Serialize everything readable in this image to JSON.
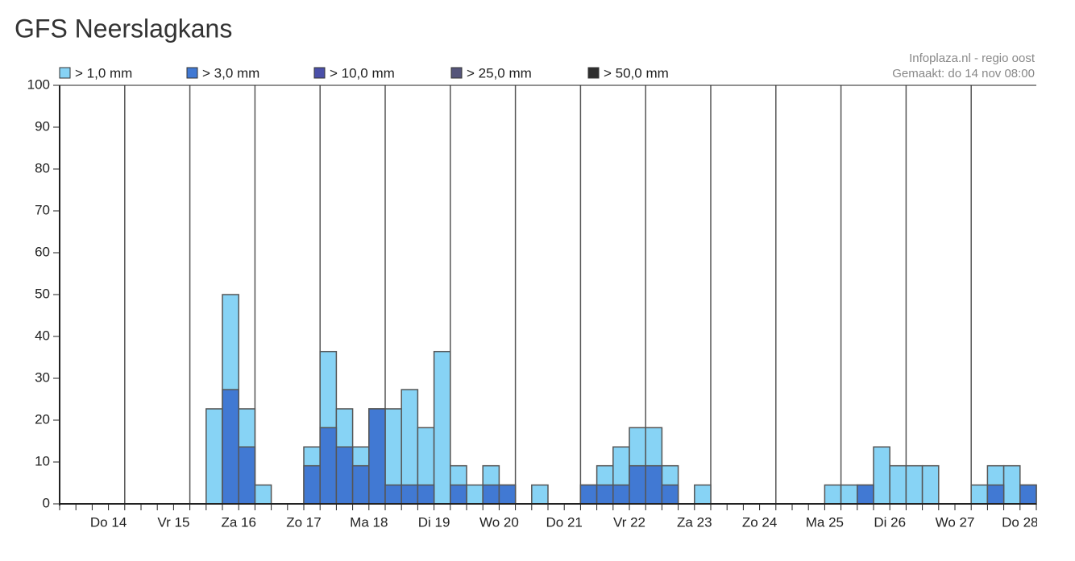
{
  "chart_data": {
    "type": "bar",
    "title": "GFS Neerslagkans",
    "annotations": [
      "Infoplaza.nl - regio oost",
      "Gemaakt: do 14 nov 08:00"
    ],
    "categories": [
      null,
      null,
      null,
      "Do 14",
      null,
      null,
      null,
      "Vr 15",
      null,
      null,
      null,
      "Za 16",
      null,
      null,
      null,
      "Zo 17",
      null,
      null,
      null,
      "Ma 18",
      null,
      null,
      null,
      "Di 19",
      null,
      null,
      null,
      "Wo 20",
      null,
      null,
      null,
      "Do 21",
      null,
      null,
      null,
      "Vr 22",
      null,
      null,
      null,
      "Za 23",
      null,
      null,
      null,
      "Zo 24",
      null,
      null,
      null,
      "Ma 25",
      null,
      null,
      null,
      "Di 26",
      null,
      null,
      null,
      "Wo 27",
      null,
      null,
      null,
      "Do 28"
    ],
    "series": [
      {
        "name": "> 1,0 mm",
        "color": "#87d3f5",
        "values": [
          0,
          0,
          0,
          0,
          0,
          0,
          0,
          0,
          0,
          22.7,
          50,
          22.7,
          4.5,
          0,
          0,
          13.6,
          36.4,
          22.7,
          13.6,
          22.7,
          22.7,
          27.3,
          18.2,
          36.4,
          9.1,
          4.5,
          9.1,
          4.5,
          0,
          4.5,
          0,
          0,
          4.5,
          9.1,
          13.6,
          18.2,
          18.2,
          9.1,
          0,
          4.5,
          0,
          0,
          0,
          0,
          0,
          0,
          0,
          4.5,
          4.5,
          4.5,
          13.6,
          9.1,
          9.1,
          9.1,
          0,
          0,
          4.5,
          9.1,
          9.1,
          4.5
        ]
      },
      {
        "name": "> 3,0 mm",
        "color": "#4179d3",
        "values": [
          0,
          0,
          0,
          0,
          0,
          0,
          0,
          0,
          0,
          0,
          27.3,
          13.6,
          0,
          0,
          0,
          9.1,
          18.2,
          13.6,
          9.1,
          22.7,
          4.5,
          4.5,
          4.5,
          0,
          4.5,
          0,
          4.5,
          4.5,
          0,
          0,
          0,
          0,
          4.5,
          4.5,
          4.5,
          9.1,
          9.1,
          4.5,
          0,
          0,
          0,
          0,
          0,
          0,
          0,
          0,
          0,
          0,
          0,
          4.5,
          0,
          0,
          0,
          0,
          0,
          0,
          0,
          4.5,
          0,
          4.5
        ]
      },
      {
        "name": "> 10,0 mm",
        "color": "#4a4fa8",
        "values": [
          0,
          0,
          0,
          0,
          0,
          0,
          0,
          0,
          0,
          0,
          0,
          0,
          0,
          0,
          0,
          0,
          0,
          0,
          0,
          0,
          0,
          0,
          0,
          0,
          0,
          0,
          0,
          0,
          0,
          0,
          0,
          0,
          0,
          0,
          0,
          0,
          0,
          0,
          0,
          0,
          0,
          0,
          0,
          0,
          0,
          0,
          0,
          0,
          0,
          0,
          0,
          0,
          0,
          0,
          0,
          0,
          0,
          0,
          0,
          0
        ]
      },
      {
        "name": "> 25,0 mm",
        "color": "#55557a",
        "values": [
          0,
          0,
          0,
          0,
          0,
          0,
          0,
          0,
          0,
          0,
          0,
          0,
          0,
          0,
          0,
          0,
          0,
          0,
          0,
          0,
          0,
          0,
          0,
          0,
          0,
          0,
          0,
          0,
          0,
          0,
          0,
          0,
          0,
          0,
          0,
          0,
          0,
          0,
          0,
          0,
          0,
          0,
          0,
          0,
          0,
          0,
          0,
          0,
          0,
          0,
          0,
          0,
          0,
          0,
          0,
          0,
          0,
          0,
          0,
          0
        ]
      },
      {
        "name": "> 50,0 mm",
        "color": "#2e2e2e",
        "values": [
          0,
          0,
          0,
          0,
          0,
          0,
          0,
          0,
          0,
          0,
          0,
          0,
          0,
          0,
          0,
          0,
          0,
          0,
          0,
          0,
          0,
          0,
          0,
          0,
          0,
          0,
          0,
          0,
          0,
          0,
          0,
          0,
          0,
          0,
          0,
          0,
          0,
          0,
          0,
          0,
          0,
          0,
          0,
          0,
          0,
          0,
          0,
          0,
          0,
          0,
          0,
          0,
          0,
          0,
          0,
          0,
          0,
          0,
          0,
          0
        ]
      }
    ],
    "ylim": [
      0,
      100
    ],
    "yticks": [
      0,
      10,
      20,
      30,
      40,
      50,
      60,
      70,
      80,
      90,
      100
    ],
    "grid": true
  }
}
